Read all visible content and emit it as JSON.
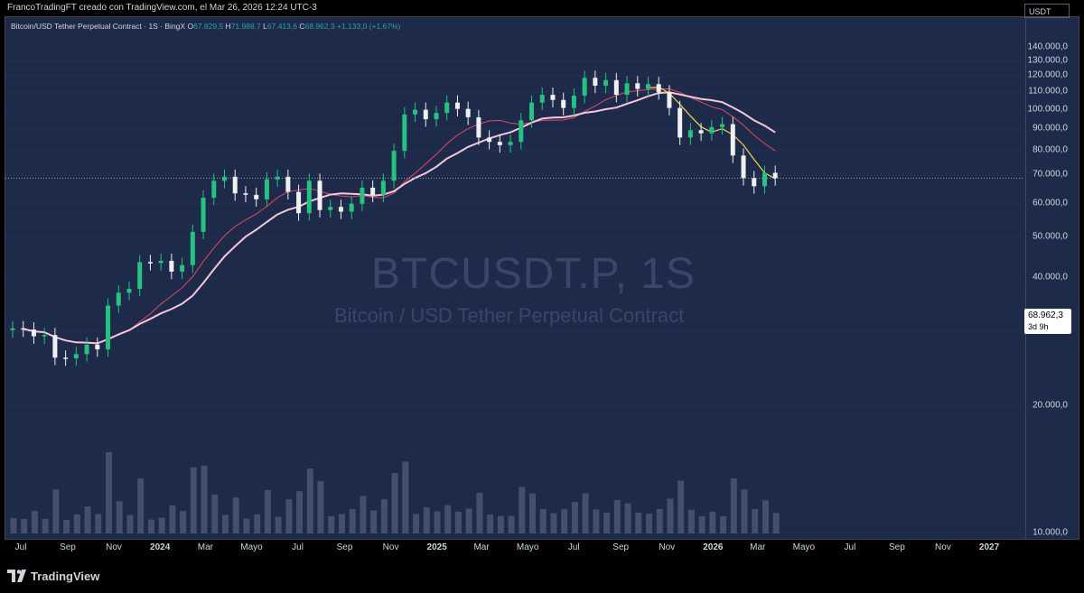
{
  "header": {
    "attribution": "FrancoTradingFT creado con TradingView.com, el Mar 26, 2026 12:24 UTC-3"
  },
  "legend": {
    "symbol_name": "Bitcoin/USD Tether Perpetual Contract · 1S · BingX",
    "open_label": "O",
    "open_value": "67.829,5",
    "high_label": "H",
    "high_value": "71.988,7",
    "low_label": "L",
    "low_value": "67.413,6",
    "close_label": "C",
    "close_value": "68.962,3",
    "change": "+1.133,0 (+1,67%)"
  },
  "watermark": {
    "symbol": "BTCUSDT.P, 1S",
    "name": "Bitcoin / USD Tether Perpetual Contract"
  },
  "price_axis": {
    "currency": "USDT",
    "labels": [
      "140.000,0",
      "130.000,0",
      "120.000,0",
      "110.000,0",
      "100.000,0",
      "90.000,0",
      "80.000,0",
      "70.000,0",
      "60.000,0",
      "50.000,0",
      "40.000,0",
      "30.000,0",
      "20.000,0",
      "10.000,0"
    ]
  },
  "current_price": {
    "value": "68.962,3",
    "countdown": "3d 9h"
  },
  "time_axis": {
    "labels": [
      "Jul",
      "Sep",
      "Nov",
      "2024",
      "Mar",
      "Mayo",
      "Jul",
      "Sep",
      "Nov",
      "2025",
      "Mar",
      "Mayo",
      "Jul",
      "Sep",
      "Nov",
      "2026",
      "Mar",
      "Mayo",
      "Jul",
      "Sep",
      "Nov",
      "2027"
    ]
  },
  "brand": {
    "name": "TradingView"
  },
  "colors": {
    "background": "#1e2a4a",
    "up": "#26c281",
    "down": "#f0f0f0",
    "ema_fast": "#e04a63",
    "ema_slow": "#f5c7d9",
    "ma_short": "#f5d547",
    "volume": "#4a5672"
  },
  "chart_data": {
    "type": "candlestick",
    "interval": "1W",
    "y_scale": "log",
    "ylim": [
      10000,
      150000
    ],
    "x_range": [
      "2023-06-19",
      "2027-02-01"
    ],
    "candles": [
      {
        "t": "2023-06-19",
        "c": 30500
      },
      {
        "t": "2023-07-03",
        "c": 30300
      },
      {
        "t": "2023-07-17",
        "c": 29200
      },
      {
        "t": "2023-07-31",
        "c": 29400
      },
      {
        "t": "2023-08-14",
        "c": 26000
      },
      {
        "t": "2023-08-28",
        "c": 25900
      },
      {
        "t": "2023-09-11",
        "c": 26500
      },
      {
        "t": "2023-09-25",
        "c": 27900
      },
      {
        "t": "2023-10-09",
        "c": 27200
      },
      {
        "t": "2023-10-23",
        "c": 34500
      },
      {
        "t": "2023-11-06",
        "c": 37000
      },
      {
        "t": "2023-11-20",
        "c": 37800
      },
      {
        "t": "2023-12-04",
        "c": 43700
      },
      {
        "t": "2023-12-18",
        "c": 43500
      },
      {
        "t": "2024-01-01",
        "c": 44000
      },
      {
        "t": "2024-01-15",
        "c": 41500
      },
      {
        "t": "2024-01-29",
        "c": 43000
      },
      {
        "t": "2024-02-12",
        "c": 51500
      },
      {
        "t": "2024-02-26",
        "c": 62000
      },
      {
        "t": "2024-03-11",
        "c": 68000
      },
      {
        "t": "2024-03-25",
        "c": 69500
      },
      {
        "t": "2024-04-08",
        "c": 63500
      },
      {
        "t": "2024-04-22",
        "c": 63000
      },
      {
        "t": "2024-05-06",
        "c": 61500
      },
      {
        "t": "2024-05-20",
        "c": 68500
      },
      {
        "t": "2024-06-03",
        "c": 69500
      },
      {
        "t": "2024-06-17",
        "c": 64000
      },
      {
        "t": "2024-07-01",
        "c": 57000
      },
      {
        "t": "2024-07-15",
        "c": 68000
      },
      {
        "t": "2024-07-29",
        "c": 58000
      },
      {
        "t": "2024-08-12",
        "c": 59000
      },
      {
        "t": "2024-08-26",
        "c": 57500
      },
      {
        "t": "2024-09-09",
        "c": 60000
      },
      {
        "t": "2024-09-23",
        "c": 65500
      },
      {
        "t": "2024-10-07",
        "c": 63000
      },
      {
        "t": "2024-10-21",
        "c": 68000
      },
      {
        "t": "2024-11-04",
        "c": 80000
      },
      {
        "t": "2024-11-18",
        "c": 97500
      },
      {
        "t": "2024-12-02",
        "c": 100000
      },
      {
        "t": "2024-12-16",
        "c": 95000
      },
      {
        "t": "2024-12-30",
        "c": 98300
      },
      {
        "t": "2025-01-13",
        "c": 104000
      },
      {
        "t": "2025-01-27",
        "c": 100500
      },
      {
        "t": "2025-02-10",
        "c": 96000
      },
      {
        "t": "2025-02-24",
        "c": 86000
      },
      {
        "t": "2025-03-10",
        "c": 84000
      },
      {
        "t": "2025-03-24",
        "c": 82500
      },
      {
        "t": "2025-04-07",
        "c": 84000
      },
      {
        "t": "2025-04-21",
        "c": 94500
      },
      {
        "t": "2025-05-05",
        "c": 104000
      },
      {
        "t": "2025-05-19",
        "c": 108500
      },
      {
        "t": "2025-06-02",
        "c": 105500
      },
      {
        "t": "2025-06-16",
        "c": 101000
      },
      {
        "t": "2025-06-30",
        "c": 108000
      },
      {
        "t": "2025-07-14",
        "c": 119000
      },
      {
        "t": "2025-07-28",
        "c": 114000
      },
      {
        "t": "2025-08-11",
        "c": 117500
      },
      {
        "t": "2025-08-25",
        "c": 108500
      },
      {
        "t": "2025-09-08",
        "c": 115500
      },
      {
        "t": "2025-09-22",
        "c": 112000
      },
      {
        "t": "2025-10-06",
        "c": 115000
      },
      {
        "t": "2025-10-20",
        "c": 110000
      },
      {
        "t": "2025-11-03",
        "c": 101000
      },
      {
        "t": "2025-11-17",
        "c": 86000
      },
      {
        "t": "2025-12-01",
        "c": 89500
      },
      {
        "t": "2025-12-15",
        "c": 88000
      },
      {
        "t": "2025-12-29",
        "c": 91000
      },
      {
        "t": "2026-01-12",
        "c": 92500
      },
      {
        "t": "2026-01-26",
        "c": 78000
      },
      {
        "t": "2026-02-09",
        "c": 69000
      },
      {
        "t": "2026-02-23",
        "c": 66000
      },
      {
        "t": "2026-03-09",
        "c": 71000
      },
      {
        "t": "2026-03-23",
        "c": 68962
      }
    ]
  }
}
